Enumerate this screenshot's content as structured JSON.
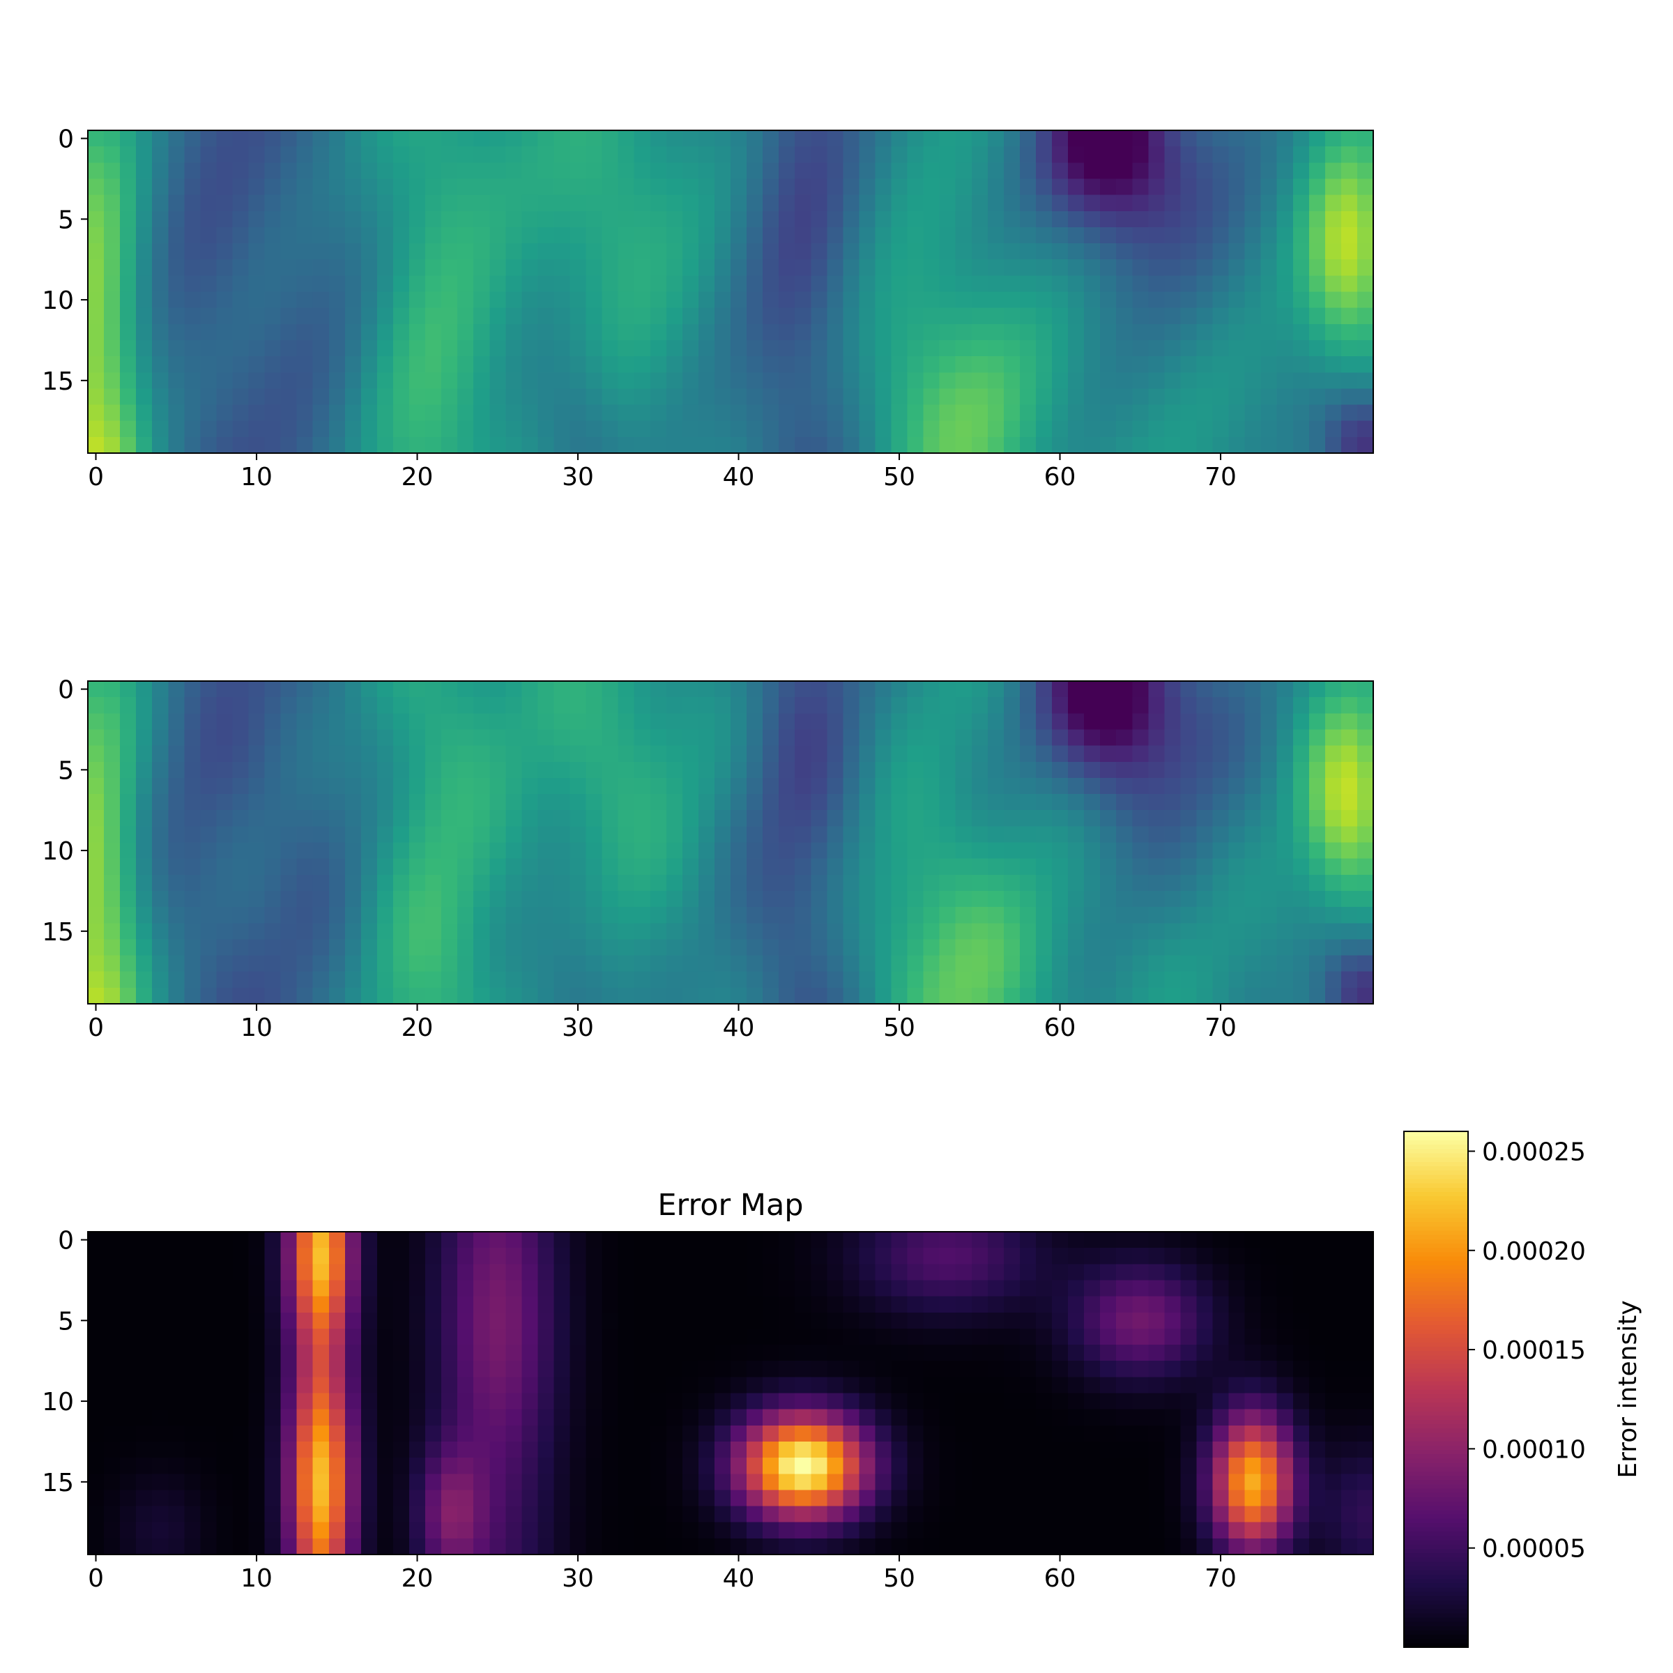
{
  "chart_data": [
    {
      "type": "heatmap",
      "colormap": "viridis",
      "title": "",
      "x_ticks": [
        0,
        10,
        20,
        30,
        40,
        50,
        60,
        70
      ],
      "y_ticks": [
        0,
        5,
        10,
        15
      ],
      "xlim": [
        -0.5,
        79.5
      ],
      "ylim": [
        19.5,
        -0.5
      ],
      "grid": false,
      "shape": [
        20,
        80
      ],
      "summary": "field ~0.2 to 1.0; bright (yellow) at left edge bottom, dark purple spot near col 62 row 0, dark bottom-right corner"
    },
    {
      "type": "heatmap",
      "colormap": "viridis",
      "title": "",
      "x_ticks": [
        0,
        10,
        20,
        30,
        40,
        50,
        60,
        70
      ],
      "y_ticks": [
        0,
        5,
        10,
        15
      ],
      "xlim": [
        -0.5,
        79.5
      ],
      "ylim": [
        19.5,
        -0.5
      ],
      "grid": false,
      "shape": [
        20,
        80
      ],
      "summary": "nearly identical to the first panel"
    },
    {
      "type": "heatmap",
      "colormap": "inferno",
      "title": "Error Map",
      "x_ticks": [
        0,
        10,
        20,
        30,
        40,
        50,
        60,
        70
      ],
      "y_ticks": [
        0,
        5,
        10,
        15
      ],
      "xlim": [
        -0.5,
        79.5
      ],
      "ylim": [
        19.5,
        -0.5
      ],
      "grid": false,
      "shape": [
        20,
        80
      ],
      "colorbar": {
        "label": "Error intensity",
        "range": [
          0.0,
          0.00026
        ],
        "ticks": [
          "0.00005",
          "0.00010",
          "0.00015",
          "0.00020",
          "0.00025"
        ]
      },
      "hotspots": [
        {
          "col": 14,
          "row": 1,
          "value": 0.00022
        },
        {
          "col": 14,
          "row": 15,
          "value": 0.00025
        },
        {
          "col": 44,
          "row": 14,
          "value": 0.00026
        },
        {
          "col": 72,
          "row": 15,
          "value": 0.00021
        }
      ]
    }
  ]
}
